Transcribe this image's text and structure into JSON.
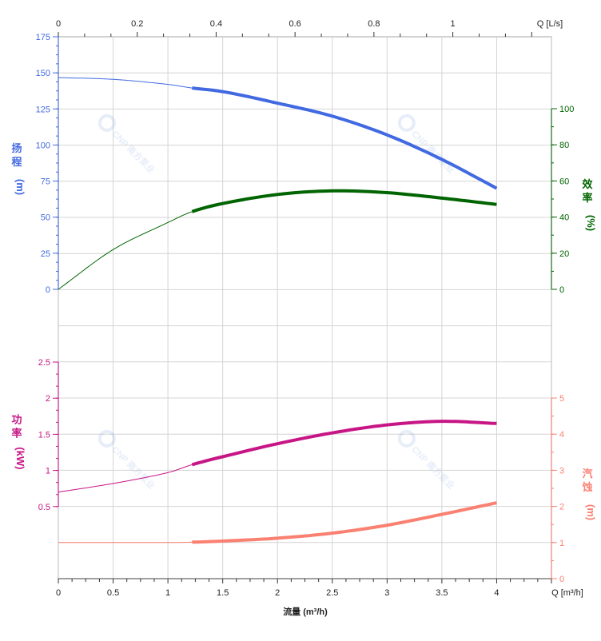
{
  "chart_data": {
    "type": "line",
    "x_bottom": {
      "label": "流量 (m³/h)",
      "unit_label": "Q [m³/h]",
      "range": [
        0,
        4.5
      ],
      "ticks": [
        "0",
        "0.5",
        "1",
        "1.5",
        "2",
        "2.5",
        "3",
        "3.5",
        "4"
      ]
    },
    "x_top": {
      "unit_label": "Q [L/s]",
      "range": [
        0,
        1.25
      ],
      "ticks": [
        "0",
        "0.2",
        "0.4",
        "0.6",
        "0.8",
        "1"
      ]
    },
    "axes": {
      "head": {
        "label_chars": [
          "扬",
          "程"
        ],
        "unit": "(m)",
        "range": [
          0,
          175
        ],
        "ticks": [
          "0",
          "25",
          "50",
          "75",
          "100",
          "125",
          "150",
          "175"
        ],
        "color": "#4169e1",
        "side": "left-top"
      },
      "efficiency": {
        "label_chars": [
          "效",
          "率"
        ],
        "unit": "(%)",
        "range": [
          0,
          100
        ],
        "ticks": [
          "0",
          "20",
          "40",
          "60",
          "80",
          "100"
        ],
        "color": "#006400",
        "side": "right-top"
      },
      "power": {
        "label_chars": [
          "功",
          "率"
        ],
        "unit": "(kW)",
        "range": [
          0,
          2.5
        ],
        "ticks": [
          "0.5",
          "1",
          "1.5",
          "2",
          "2.5"
        ],
        "color": "#c71585",
        "side": "left-bottom"
      },
      "npsh": {
        "label_chars": [
          "汽",
          "蚀"
        ],
        "unit": "(m)",
        "range": [
          0,
          5
        ],
        "ticks": [
          "0",
          "1",
          "2",
          "3",
          "4",
          "5"
        ],
        "color": "#fa8072",
        "side": "right-bottom"
      }
    },
    "operating_range": [
      1.22,
      4
    ],
    "x": [
      0,
      0.5,
      1,
      1.22,
      1.5,
      2,
      2.5,
      3,
      3.5,
      4
    ],
    "series": [
      {
        "axis": "head",
        "values": [
          146.7,
          145.5,
          142,
          139.5,
          137,
          129,
          120,
          107,
          90,
          70
        ]
      },
      {
        "axis": "efficiency",
        "values": [
          0,
          22,
          37,
          43,
          47.5,
          52.5,
          54.5,
          53.5,
          50.5,
          47
        ]
      },
      {
        "axis": "power",
        "values": [
          0.7,
          0.82,
          0.97,
          1.08,
          1.19,
          1.37,
          1.52,
          1.63,
          1.68,
          1.65
        ]
      },
      {
        "axis": "npsh",
        "values": [
          1.0,
          1.0,
          1.0,
          1.01,
          1.04,
          1.12,
          1.26,
          1.48,
          1.78,
          2.1
        ]
      }
    ],
    "grid": true,
    "watermark": "CNP 南方泵业"
  }
}
